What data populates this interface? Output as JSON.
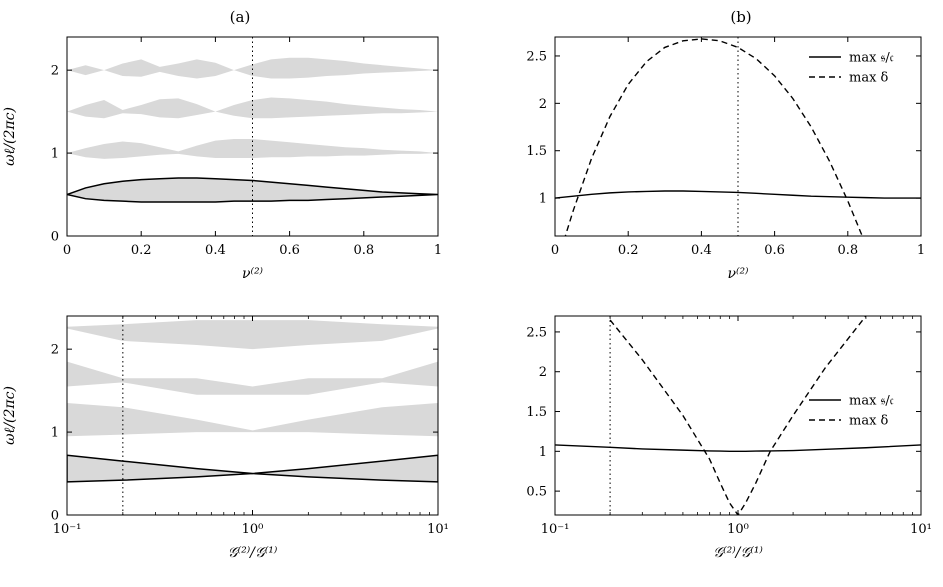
{
  "figure": {
    "panel_titles": [
      "(a)",
      "(b)"
    ]
  },
  "colors": {
    "band_fill": "#d9d9d9",
    "line": "#000000"
  },
  "chart_data": [
    {
      "id": "top-left",
      "type": "area",
      "title": "(a)",
      "xlabel": "ν⁽²⁾",
      "ylabel": "ωℓ/(2πc)",
      "xlim": [
        0,
        1
      ],
      "ylim": [
        0,
        2.4
      ],
      "xticks": [
        0,
        0.2,
        0.4,
        0.6,
        0.8,
        1
      ],
      "xticklabels": [
        "0",
        "0.2",
        "0.4",
        "0.6",
        "0.8",
        "1"
      ],
      "yticks": [
        0,
        1,
        2
      ],
      "yticklabels": [
        "0",
        "1",
        "2"
      ],
      "vline": 0.5,
      "x": [
        0,
        0.05,
        0.1,
        0.15,
        0.2,
        0.25,
        0.3,
        0.35,
        0.4,
        0.45,
        0.5,
        0.55,
        0.6,
        0.65,
        0.7,
        0.75,
        0.8,
        0.85,
        0.9,
        0.95,
        1
      ],
      "bands": [
        {
          "lower": [
            0.5,
            0.45,
            0.43,
            0.42,
            0.41,
            0.41,
            0.41,
            0.41,
            0.41,
            0.42,
            0.42,
            0.42,
            0.43,
            0.43,
            0.44,
            0.45,
            0.46,
            0.47,
            0.48,
            0.49,
            0.5
          ],
          "upper": [
            0.5,
            0.58,
            0.63,
            0.66,
            0.68,
            0.69,
            0.7,
            0.7,
            0.69,
            0.68,
            0.67,
            0.65,
            0.63,
            0.61,
            0.59,
            0.57,
            0.55,
            0.53,
            0.52,
            0.51,
            0.5
          ],
          "outlined": true
        },
        {
          "lower": [
            1,
            0.95,
            0.93,
            0.94,
            0.96,
            0.98,
            0.99,
            0.96,
            0.94,
            0.94,
            0.94,
            0.95,
            0.95,
            0.96,
            0.96,
            0.97,
            0.97,
            0.98,
            0.99,
            0.99,
            1
          ],
          "upper": [
            1,
            1.06,
            1.11,
            1.14,
            1.12,
            1.07,
            1.02,
            1.09,
            1.15,
            1.17,
            1.17,
            1.15,
            1.13,
            1.11,
            1.09,
            1.07,
            1.06,
            1.04,
            1.03,
            1.02,
            1
          ],
          "outlined": false
        },
        {
          "lower": [
            1.5,
            1.44,
            1.42,
            1.48,
            1.47,
            1.43,
            1.42,
            1.46,
            1.5,
            1.45,
            1.42,
            1.42,
            1.43,
            1.44,
            1.45,
            1.46,
            1.47,
            1.48,
            1.48,
            1.49,
            1.5
          ],
          "upper": [
            1.5,
            1.58,
            1.64,
            1.52,
            1.58,
            1.65,
            1.66,
            1.59,
            1.5,
            1.58,
            1.64,
            1.67,
            1.66,
            1.64,
            1.62,
            1.59,
            1.57,
            1.55,
            1.53,
            1.52,
            1.5
          ],
          "outlined": false
        },
        {
          "lower": [
            2,
            1.94,
            2.0,
            1.93,
            1.92,
            1.98,
            1.93,
            1.9,
            1.93,
            2.0,
            1.93,
            1.9,
            1.9,
            1.91,
            1.93,
            1.94,
            1.96,
            1.97,
            1.98,
            1.99,
            2
          ],
          "upper": [
            2,
            2.06,
            2.0,
            2.08,
            2.13,
            2.04,
            2.08,
            2.13,
            2.09,
            2.0,
            2.07,
            2.13,
            2.15,
            2.15,
            2.13,
            2.11,
            2.08,
            2.06,
            2.04,
            2.02,
            2
          ],
          "outlined": false
        }
      ]
    },
    {
      "id": "top-right",
      "type": "line",
      "title": "(b)",
      "xlabel": "ν⁽²⁾",
      "ylabel": "",
      "xlim": [
        0,
        1
      ],
      "ylim": [
        0.6,
        2.7
      ],
      "xticks": [
        0,
        0.2,
        0.4,
        0.6,
        0.8,
        1
      ],
      "xticklabels": [
        "0",
        "0.2",
        "0.4",
        "0.6",
        "0.8",
        "1"
      ],
      "yticks": [
        1,
        1.5,
        2,
        2.5
      ],
      "yticklabels": [
        "1",
        "1.5",
        "2",
        "2.5"
      ],
      "vline": 0.5,
      "legend": {
        "position": "top-right",
        "entries": [
          "max 𝔰/𝔠",
          "max δ"
        ]
      },
      "x": [
        0,
        0.05,
        0.1,
        0.15,
        0.2,
        0.25,
        0.3,
        0.35,
        0.4,
        0.45,
        0.5,
        0.55,
        0.6,
        0.65,
        0.7,
        0.75,
        0.8,
        0.85,
        0.9,
        0.95,
        1
      ],
      "series": [
        {
          "name": "max 𝔰/𝔠",
          "dash": "solid",
          "values": [
            1.0,
            1.02,
            1.04,
            1.055,
            1.065,
            1.07,
            1.075,
            1.075,
            1.07,
            1.065,
            1.06,
            1.05,
            1.04,
            1.03,
            1.02,
            1.015,
            1.01,
            1.005,
            1.0,
            1.0,
            1.0
          ]
        },
        {
          "name": "max δ",
          "dash": "dashed",
          "values": [
            0.25,
            0.87,
            1.42,
            1.86,
            2.2,
            2.44,
            2.59,
            2.66,
            2.68,
            2.66,
            2.59,
            2.47,
            2.29,
            2.05,
            1.75,
            1.39,
            0.97,
            0.5,
            null,
            null,
            null
          ]
        }
      ]
    },
    {
      "id": "bottom-left",
      "type": "area",
      "title": "",
      "xlabel": "𝒢⁽²⁾/𝒢⁽¹⁾",
      "ylabel": "ωℓ/(2πc)",
      "xscale": "log",
      "xlim": [
        0.1,
        10
      ],
      "ylim": [
        0,
        2.4
      ],
      "xticks": [
        0.1,
        1,
        10
      ],
      "xticklabels": [
        "10⁻¹",
        "10⁰",
        "10¹"
      ],
      "yticks": [
        0,
        1,
        2
      ],
      "yticklabels": [
        "0",
        "1",
        "2"
      ],
      "vline": 0.2,
      "x": [
        0.1,
        0.2,
        0.5,
        1,
        2,
        5,
        10
      ],
      "bands": [
        {
          "lower": [
            0.4,
            0.42,
            0.46,
            0.5,
            0.46,
            0.42,
            0.4
          ],
          "upper": [
            0.72,
            0.65,
            0.56,
            0.5,
            0.56,
            0.65,
            0.72
          ],
          "outlined": true
        },
        {
          "lower": [
            0.95,
            0.97,
            1.0,
            1.0,
            1.0,
            0.97,
            0.95
          ],
          "upper": [
            1.35,
            1.3,
            1.15,
            1.02,
            1.15,
            1.3,
            1.35
          ],
          "outlined": false
        },
        {
          "lower": [
            1.55,
            1.6,
            1.45,
            1.45,
            1.45,
            1.6,
            1.55
          ],
          "upper": [
            1.85,
            1.65,
            1.65,
            1.55,
            1.65,
            1.65,
            1.85
          ],
          "outlined": false
        },
        {
          "lower": [
            2.25,
            2.1,
            2.05,
            2.0,
            2.05,
            2.1,
            2.25
          ],
          "upper": [
            2.27,
            2.3,
            2.35,
            2.35,
            2.35,
            2.3,
            2.27
          ],
          "outlined": false
        }
      ]
    },
    {
      "id": "bottom-right",
      "type": "line",
      "title": "",
      "xlabel": "𝒢⁽²⁾/𝒢⁽¹⁾",
      "ylabel": "",
      "xscale": "log",
      "xlim": [
        0.1,
        10
      ],
      "ylim": [
        0.2,
        2.7
      ],
      "xticks": [
        0.1,
        1,
        10
      ],
      "xticklabels": [
        "10⁻¹",
        "10⁰",
        "10¹"
      ],
      "yticks": [
        0.5,
        1,
        1.5,
        2,
        2.5
      ],
      "yticklabels": [
        "0.5",
        "1",
        "1.5",
        "2",
        "2.5"
      ],
      "vline": 0.2,
      "legend": {
        "position": "right",
        "entries": [
          "max 𝔰/𝔠",
          "max δ"
        ]
      },
      "x": [
        0.1,
        0.2,
        0.3,
        0.5,
        0.7,
        0.8,
        0.9,
        1.0,
        1.1,
        1.25,
        1.5,
        2,
        3,
        5,
        10
      ],
      "series": [
        {
          "name": "max 𝔰/𝔠",
          "dash": "solid",
          "values": [
            1.08,
            1.05,
            1.03,
            1.015,
            1.005,
            1.003,
            1.0,
            1.0,
            1.0,
            1.003,
            1.005,
            1.01,
            1.025,
            1.045,
            1.08
          ]
        },
        {
          "name": "max δ",
          "dash": "dashed",
          "values": [
            null,
            2.65,
            2.15,
            1.45,
            0.9,
            0.6,
            0.35,
            0.2,
            0.35,
            0.6,
            1.0,
            1.45,
            2.05,
            2.7,
            null
          ]
        }
      ]
    }
  ]
}
